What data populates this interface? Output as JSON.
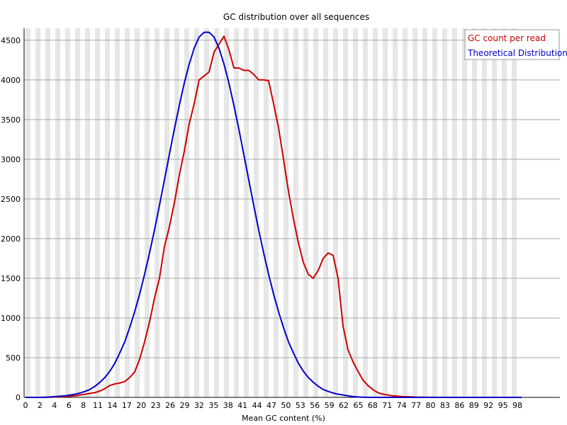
{
  "chart_data": {
    "type": "line",
    "title": "GC distribution over all sequences",
    "xlabel": "Mean GC content (%)",
    "ylabel": "",
    "xlim": [
      0,
      100
    ],
    "ylim": [
      0,
      4650
    ],
    "grid": true,
    "legend_position": "top-right",
    "x_tick_labels": [
      "0",
      "2",
      "4",
      "6",
      "8",
      "11",
      "14",
      "17",
      "20",
      "23",
      "26",
      "29",
      "32",
      "35",
      "38",
      "41",
      "44",
      "47",
      "50",
      "53",
      "56",
      "59",
      "62",
      "65",
      "68",
      "71",
      "74",
      "77",
      "80",
      "83",
      "86",
      "89",
      "92",
      "95",
      "98"
    ],
    "y_ticks": [
      0,
      500,
      1000,
      1500,
      2000,
      2500,
      3000,
      3500,
      4000,
      4500
    ],
    "series": [
      {
        "name": "GC count per read",
        "color": "#cc0000",
        "x": [
          0,
          1,
          2,
          3,
          4,
          5,
          6,
          7,
          8,
          9,
          10,
          11,
          12,
          13,
          14,
          15,
          16,
          17,
          18,
          19,
          20,
          21,
          22,
          23,
          24,
          25,
          26,
          27,
          28,
          29,
          30,
          31,
          32,
          33,
          34,
          35,
          36,
          37,
          38,
          39,
          40,
          41,
          42,
          43,
          44,
          45,
          46,
          47,
          48,
          49,
          50,
          51,
          52,
          53,
          54,
          55,
          56,
          57,
          58,
          59,
          60,
          61,
          62,
          63,
          64,
          65,
          66,
          67,
          68,
          69,
          70,
          71,
          72,
          73,
          74,
          75,
          76,
          77,
          78,
          79,
          80,
          81,
          82,
          83,
          84,
          85,
          86,
          87,
          88,
          89,
          90,
          91,
          92,
          93,
          94,
          95,
          96,
          97,
          98,
          99,
          100
        ],
        "y": [
          0,
          0,
          0,
          0,
          2,
          3,
          5,
          7,
          10,
          14,
          20,
          30,
          40,
          50,
          60,
          80,
          110,
          150,
          170,
          180,
          200,
          250,
          320,
          480,
          700,
          950,
          1250,
          1500,
          1900,
          2150,
          2450,
          2800,
          3100,
          3450,
          3700,
          4000,
          4050,
          4100,
          4350,
          4450,
          4550,
          4380,
          4150,
          4150,
          4120,
          4120,
          4070,
          4000,
          4000,
          3990,
          3700,
          3400,
          3000,
          2600,
          2250,
          1950,
          1700,
          1550,
          1500,
          1600,
          1750,
          1820,
          1790,
          1500,
          900,
          600,
          450,
          330,
          220,
          150,
          100,
          60,
          40,
          30,
          20,
          15,
          10,
          8,
          5,
          3,
          2,
          1,
          1,
          0,
          0,
          0,
          0,
          0,
          0,
          0,
          0,
          0,
          0,
          0,
          0,
          0,
          0,
          0,
          0,
          0,
          0
        ]
      },
      {
        "name": "Theoretical Distribution",
        "color": "#0000cc",
        "x": [
          0,
          1,
          2,
          3,
          4,
          5,
          6,
          7,
          8,
          9,
          10,
          11,
          12,
          13,
          14,
          15,
          16,
          17,
          18,
          19,
          20,
          21,
          22,
          23,
          24,
          25,
          26,
          27,
          28,
          29,
          30,
          31,
          32,
          33,
          34,
          35,
          36,
          37,
          38,
          39,
          40,
          41,
          42,
          43,
          44,
          45,
          46,
          47,
          48,
          49,
          50,
          51,
          52,
          53,
          54,
          55,
          56,
          57,
          58,
          59,
          60,
          61,
          62,
          63,
          64,
          65,
          66,
          67,
          68,
          69,
          70,
          71,
          72,
          73,
          74,
          75,
          76,
          77,
          78,
          79,
          80,
          81,
          82,
          83,
          84,
          85,
          86,
          87,
          88,
          89,
          90,
          91,
          92,
          93,
          94,
          95,
          96,
          97,
          98,
          99,
          100
        ],
        "y": [
          0,
          0,
          0,
          0,
          0,
          5,
          10,
          15,
          20,
          30,
          40,
          55,
          75,
          100,
          140,
          190,
          250,
          330,
          430,
          560,
          700,
          880,
          1080,
          1300,
          1550,
          1820,
          2110,
          2420,
          2740,
          3060,
          3380,
          3680,
          3960,
          4200,
          4400,
          4540,
          4600,
          4600,
          4540,
          4400,
          4200,
          3960,
          3680,
          3380,
          3060,
          2740,
          2420,
          2110,
          1820,
          1550,
          1300,
          1080,
          880,
          700,
          560,
          430,
          330,
          250,
          190,
          140,
          100,
          75,
          55,
          40,
          30,
          20,
          10,
          5,
          2,
          0,
          0,
          0,
          0,
          0,
          0,
          0,
          0,
          0,
          0,
          0,
          0,
          0,
          0,
          0,
          0,
          0,
          0,
          0,
          0,
          0,
          0,
          0,
          0,
          0,
          0,
          0,
          0,
          0,
          0,
          0,
          0
        ]
      }
    ]
  }
}
